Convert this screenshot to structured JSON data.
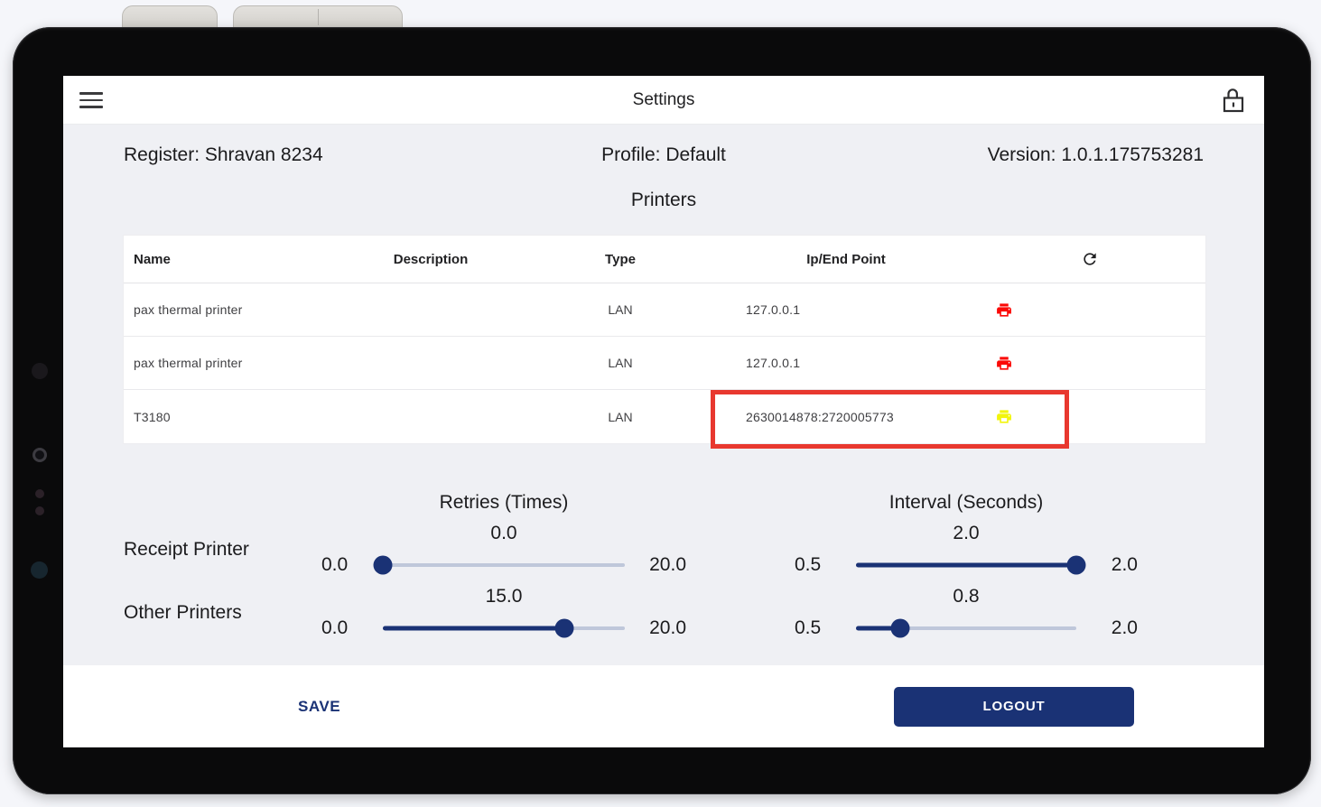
{
  "app_bar": {
    "title": "Settings"
  },
  "status_row": {
    "register": "Register: Shravan 8234",
    "profile": "Profile: Default",
    "version": "Version: 1.0.1.175753281"
  },
  "section_title": "Printers",
  "printers_table": {
    "headers": {
      "name": "Name",
      "description": "Description",
      "type": "Type",
      "endpoint": "Ip/End Point"
    },
    "rows": [
      {
        "name": "pax thermal printer",
        "description": "",
        "type": "LAN",
        "endpoint": "127.0.0.1",
        "printer_status_color": "#fb0a07"
      },
      {
        "name": "pax thermal printer",
        "description": "",
        "type": "LAN",
        "endpoint": "127.0.0.1",
        "printer_status_color": "#fb0a07"
      },
      {
        "name": "T3180",
        "description": "",
        "type": "LAN",
        "endpoint": "2630014878:2720005773",
        "printer_status_color": "#f2f50a"
      }
    ]
  },
  "sliders": {
    "retries_header": "Retries (Times)",
    "interval_header": "Interval (Seconds)",
    "rows": [
      {
        "label": "Receipt Printer",
        "retries": {
          "value": "0.0",
          "min": "0.0",
          "max": "20.0",
          "percent": 0
        },
        "interval": {
          "value": "2.0",
          "min": "0.5",
          "max": "2.0",
          "percent": 100
        }
      },
      {
        "label": "Other Printers",
        "retries": {
          "value": "15.0",
          "min": "0.0",
          "max": "20.0",
          "percent": 75
        },
        "interval": {
          "value": "0.8",
          "min": "0.5",
          "max": "2.0",
          "percent": 20
        }
      }
    ]
  },
  "footer": {
    "save_label": "SAVE",
    "logout_label": "LOGOUT"
  },
  "icons": {
    "menu": "hamburger-menu-icon",
    "lock": "unlocked-padlock-icon",
    "refresh": "refresh-icon",
    "printer": "printer-status-icon"
  },
  "colors": {
    "navy": "#1a3275",
    "slider_track_inactive": "#bfc7da",
    "printer_error_red": "#fb0a07",
    "printer_warning_yellow": "#f2f50a",
    "annotation_red": "#e8382f"
  }
}
